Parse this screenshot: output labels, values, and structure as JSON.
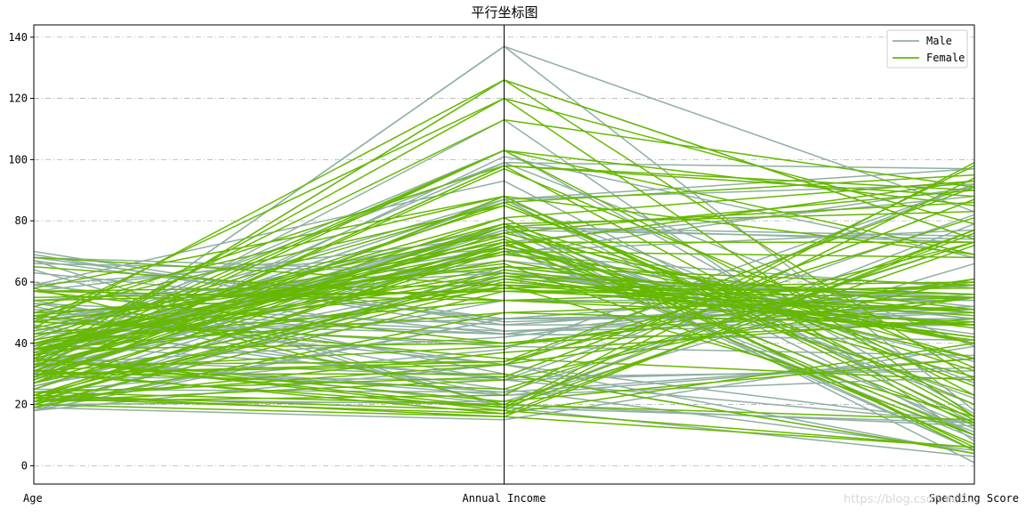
{
  "chart_data": {
    "type": "parallel_coordinates",
    "title": "平行坐标图",
    "axes": [
      "Age",
      "Annual Income",
      "Spending Score"
    ],
    "ylim": [
      -6,
      144
    ],
    "yticks": [
      0,
      20,
      40,
      60,
      80,
      100,
      120,
      140
    ],
    "grid": "horizontal dash-dot",
    "legend_position": "top-right",
    "series": [
      {
        "name": "Male",
        "color": "#8fb0a0",
        "lines": [
          [
            19,
            15,
            39
          ],
          [
            64,
            19,
            3
          ],
          [
            67,
            19,
            14
          ],
          [
            37,
            20,
            13
          ],
          [
            22,
            20,
            79
          ],
          [
            20,
            21,
            66
          ],
          [
            35,
            23,
            35
          ],
          [
            52,
            23,
            29
          ],
          [
            35,
            24,
            35
          ],
          [
            25,
            24,
            73
          ],
          [
            46,
            25,
            5
          ],
          [
            54,
            28,
            14
          ],
          [
            29,
            28,
            82
          ],
          [
            45,
            28,
            32
          ],
          [
            35,
            29,
            31
          ],
          [
            40,
            29,
            87
          ],
          [
            60,
            30,
            4
          ],
          [
            53,
            33,
            4
          ],
          [
            18,
            33,
            92
          ],
          [
            49,
            33,
            14
          ],
          [
            24,
            38,
            92
          ],
          [
            48,
            39,
            36
          ],
          [
            33,
            42,
            60
          ],
          [
            59,
            43,
            60
          ],
          [
            50,
            43,
            41
          ],
          [
            47,
            43,
            41
          ],
          [
            51,
            44,
            50
          ],
          [
            69,
            44,
            46
          ],
          [
            53,
            46,
            46
          ],
          [
            70,
            46,
            56
          ],
          [
            19,
            48,
            59
          ],
          [
            67,
            47,
            52
          ],
          [
            63,
            48,
            51
          ],
          [
            18,
            48,
            59
          ],
          [
            43,
            48,
            50
          ],
          [
            68,
            48,
            48
          ],
          [
            32,
            61,
            55
          ],
          [
            26,
            62,
            55
          ],
          [
            19,
            63,
            54
          ],
          [
            66,
            63,
            48
          ],
          [
            54,
            63,
            46
          ],
          [
            68,
            63,
            43
          ],
          [
            18,
            65,
            48
          ],
          [
            48,
            67,
            52
          ],
          [
            40,
            69,
            58
          ],
          [
            59,
            71,
            11
          ],
          [
            26,
            54,
            54
          ],
          [
            39,
            69,
            91
          ],
          [
            25,
            72,
            34
          ],
          [
            31,
            70,
            77
          ],
          [
            20,
            73,
            5
          ],
          [
            29,
            73,
            88
          ],
          [
            28,
            77,
            12
          ],
          [
            35,
            77,
            74
          ],
          [
            37,
            78,
            1
          ],
          [
            32,
            78,
            73
          ],
          [
            36,
            87,
            10
          ],
          [
            30,
            87,
            97
          ],
          [
            43,
            87,
            27
          ],
          [
            47,
            71,
            9
          ],
          [
            36,
            78,
            75
          ],
          [
            28,
            101,
            68
          ],
          [
            39,
            103,
            17
          ],
          [
            33,
            113,
            8
          ],
          [
            32,
            126,
            74
          ],
          [
            30,
            137,
            18
          ],
          [
            59,
            93,
            14
          ],
          [
            34,
            78,
            22
          ],
          [
            44,
            78,
            20
          ],
          [
            57,
            75,
            5
          ],
          [
            27,
            88,
            15
          ],
          [
            32,
            99,
            97
          ],
          [
            41,
            99,
            39
          ],
          [
            36,
            87,
            92
          ],
          [
            30,
            137,
            83
          ]
        ]
      },
      {
        "name": "Female",
        "color": "#66b800",
        "lines": [
          [
            20,
            16,
            6
          ],
          [
            23,
            16,
            77
          ],
          [
            31,
            17,
            40
          ],
          [
            22,
            17,
            76
          ],
          [
            35,
            18,
            6
          ],
          [
            23,
            18,
            94
          ],
          [
            30,
            19,
            72
          ],
          [
            35,
            19,
            99
          ],
          [
            58,
            20,
            15
          ],
          [
            24,
            20,
            77
          ],
          [
            35,
            21,
            35
          ],
          [
            21,
            23,
            98
          ],
          [
            31,
            25,
            73
          ],
          [
            21,
            28,
            61
          ],
          [
            24,
            29,
            87
          ],
          [
            30,
            30,
            4
          ],
          [
            30,
            34,
            73
          ],
          [
            49,
            35,
            28
          ],
          [
            30,
            33,
            81
          ],
          [
            31,
            39,
            61
          ],
          [
            38,
            40,
            55
          ],
          [
            57,
            40,
            55
          ],
          [
            33,
            34,
            91
          ],
          [
            21,
            37,
            48
          ],
          [
            38,
            50,
            46
          ],
          [
            40,
            54,
            47
          ],
          [
            43,
            58,
            46
          ],
          [
            50,
            58,
            46
          ],
          [
            27,
            60,
            50
          ],
          [
            38,
            62,
            56
          ],
          [
            40,
            63,
            42
          ],
          [
            21,
            64,
            45
          ],
          [
            22,
            33,
            55
          ],
          [
            47,
            40,
            47
          ],
          [
            55,
            57,
            58
          ],
          [
            34,
            58,
            60
          ],
          [
            22,
            59,
            49
          ],
          [
            68,
            59,
            56
          ],
          [
            23,
            71,
            35
          ],
          [
            36,
            65,
            50
          ],
          [
            49,
            65,
            59
          ],
          [
            41,
            69,
            51
          ],
          [
            40,
            79,
            6
          ],
          [
            23,
            70,
            29
          ],
          [
            38,
            70,
            68
          ],
          [
            33,
            72,
            40
          ],
          [
            27,
            73,
            73
          ],
          [
            35,
            74,
            14
          ],
          [
            37,
            74,
            23
          ],
          [
            38,
            75,
            10
          ],
          [
            28,
            79,
            35
          ],
          [
            22,
            72,
            93
          ],
          [
            40,
            67,
            40
          ],
          [
            47,
            66,
            10
          ],
          [
            57,
            59,
            16
          ],
          [
            65,
            54,
            59
          ],
          [
            45,
            76,
            90
          ],
          [
            29,
            76,
            40
          ],
          [
            31,
            78,
            31
          ],
          [
            25,
            78,
            86
          ],
          [
            41,
            71,
            35
          ],
          [
            19,
            50,
            55
          ],
          [
            22,
            61,
            42
          ],
          [
            34,
            103,
            23
          ],
          [
            36,
            103,
            85
          ],
          [
            32,
            103,
            69
          ],
          [
            38,
            113,
            91
          ],
          [
            47,
            120,
            16
          ],
          [
            35,
            120,
            79
          ],
          [
            45,
            126,
            28
          ],
          [
            32,
            126,
            74
          ],
          [
            48,
            98,
            16
          ],
          [
            29,
            98,
            88
          ],
          [
            58,
            88,
            15
          ],
          [
            29,
            98,
            90
          ],
          [
            36,
            85,
            26
          ],
          [
            50,
            85,
            26
          ],
          [
            42,
            86,
            20
          ],
          [
            31,
            81,
            93
          ],
          [
            27,
            88,
            69
          ],
          [
            52,
            88,
            13
          ],
          [
            44,
            73,
            7
          ],
          [
            23,
            62,
            41
          ],
          [
            29,
            79,
            83
          ],
          [
            29,
            97,
            32
          ],
          [
            54,
            57,
            51
          ],
          [
            20,
            57,
            55
          ],
          [
            39,
            81,
            5
          ],
          [
            57,
            54,
            51
          ],
          [
            31,
            86,
            95
          ]
        ]
      }
    ]
  },
  "watermark": "https://blog.csdn.net/…"
}
